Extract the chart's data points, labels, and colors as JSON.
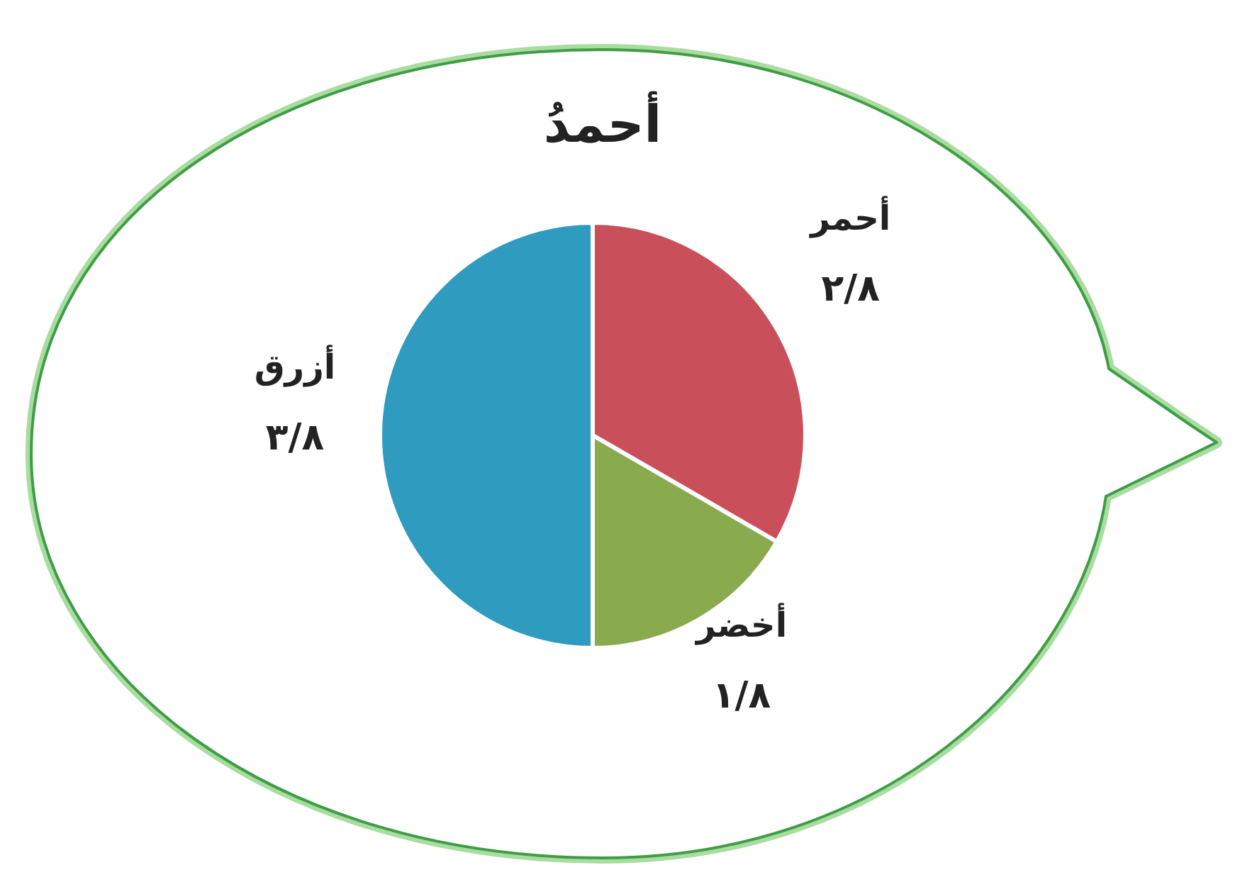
{
  "chart_data": {
    "type": "pie",
    "title": "أحمدُ",
    "categories": [
      "أحمر",
      "أخضر",
      "أزرق"
    ],
    "values": [
      0.25,
      0.125,
      0.375
    ],
    "value_labels": [
      "٢/٨",
      "١/٨",
      "٣/٨"
    ],
    "colors": [
      "#c9505a",
      "#8aaa4e",
      "#2e9bbf"
    ]
  }
}
